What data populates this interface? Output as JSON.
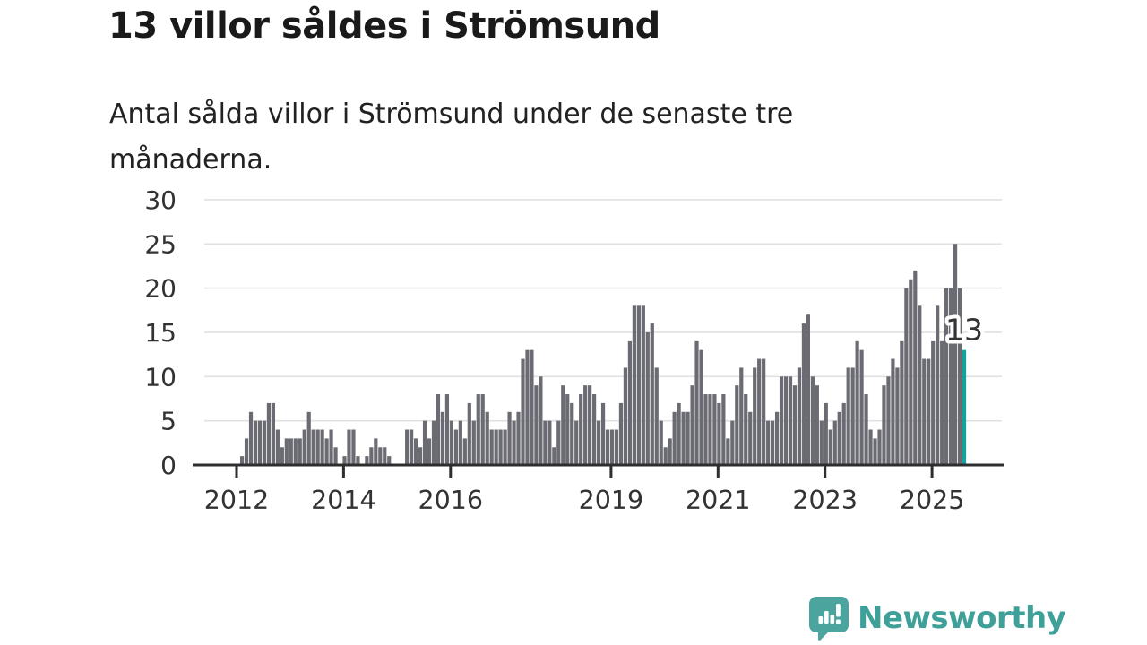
{
  "header": {
    "title": "13 villor såldes i Strömsund",
    "subtitle_lines": [
      "Antal sålda villor i Strömsund under de senaste tre",
      "månaderna."
    ]
  },
  "chart_data": {
    "type": "bar",
    "title": "13 villor såldes i Strömsund",
    "subtitle": "Antal sålda villor i Strömsund under de senaste tre månaderna.",
    "ylabel": "Antal sålda villor",
    "xlabel": "",
    "ylim": [
      0,
      30
    ],
    "y_ticks": [
      0,
      5,
      10,
      15,
      20,
      25,
      30
    ],
    "grid": true,
    "legend": false,
    "start_month": "2012-01",
    "end_month": "2025-08",
    "x_tick_labels": [
      "2012",
      "2014",
      "2016",
      "2019",
      "2021",
      "2023",
      "2025"
    ],
    "series": [
      {
        "year": 2012,
        "values": [
          0,
          1,
          3,
          6,
          5,
          5,
          5,
          7,
          7,
          4,
          2,
          3
        ]
      },
      {
        "year": 2013,
        "values": [
          3,
          3,
          3,
          4,
          6,
          4,
          4,
          4,
          3,
          4,
          2,
          0
        ]
      },
      {
        "year": 2014,
        "values": [
          1,
          4,
          4,
          1,
          0,
          1,
          2,
          3,
          2,
          2,
          1,
          0
        ]
      },
      {
        "year": 2015,
        "values": [
          0,
          0,
          4,
          4,
          3,
          2,
          5,
          3,
          5,
          8,
          6,
          8
        ]
      },
      {
        "year": 2016,
        "values": [
          5,
          4,
          5,
          3,
          7,
          5,
          8,
          8,
          6,
          4,
          4,
          4
        ]
      },
      {
        "year": 2017,
        "values": [
          4,
          6,
          5,
          6,
          12,
          13,
          13,
          9,
          10,
          5,
          5,
          2
        ]
      },
      {
        "year": 2018,
        "values": [
          5,
          9,
          8,
          7,
          5,
          8,
          9,
          9,
          8,
          5,
          7,
          4
        ]
      },
      {
        "year": 2019,
        "values": [
          4,
          4,
          7,
          11,
          14,
          18,
          18,
          18,
          15,
          16,
          11,
          5
        ]
      },
      {
        "year": 2020,
        "values": [
          2,
          3,
          6,
          7,
          6,
          6,
          9,
          14,
          13,
          8,
          8,
          8
        ]
      },
      {
        "year": 2021,
        "values": [
          7,
          8,
          3,
          5,
          9,
          11,
          8,
          6,
          11,
          12,
          12,
          5
        ]
      },
      {
        "year": 2022,
        "values": [
          5,
          6,
          10,
          10,
          10,
          9,
          11,
          16,
          17,
          10,
          9,
          5
        ]
      },
      {
        "year": 2023,
        "values": [
          7,
          4,
          5,
          6,
          7,
          11,
          11,
          14,
          13,
          8,
          4,
          3
        ]
      },
      {
        "year": 2024,
        "values": [
          4,
          9,
          10,
          12,
          11,
          14,
          20,
          21,
          22,
          18,
          12,
          12
        ]
      },
      {
        "year": 2025,
        "values": [
          14,
          18,
          14,
          20,
          20,
          25,
          20,
          13
        ]
      }
    ],
    "highlight": {
      "month": "2025-08",
      "value": 13,
      "label": "13"
    }
  },
  "annotation": {
    "label": "13"
  },
  "colors": {
    "bar": "#6b6b73",
    "highlight": "#12a39c",
    "axis": "#2e2e2e",
    "gridline": "#e1e1e1",
    "tick_text": "#333333",
    "annotation_text": "#333333",
    "annotation_halo": "#ffffff",
    "logo_icon": "#4ba59e",
    "logo_text": "#3fa099"
  },
  "logo": {
    "text": "Newsworthy",
    "icon": "newsworthy-bar-chart-speech-bubble-icon"
  }
}
